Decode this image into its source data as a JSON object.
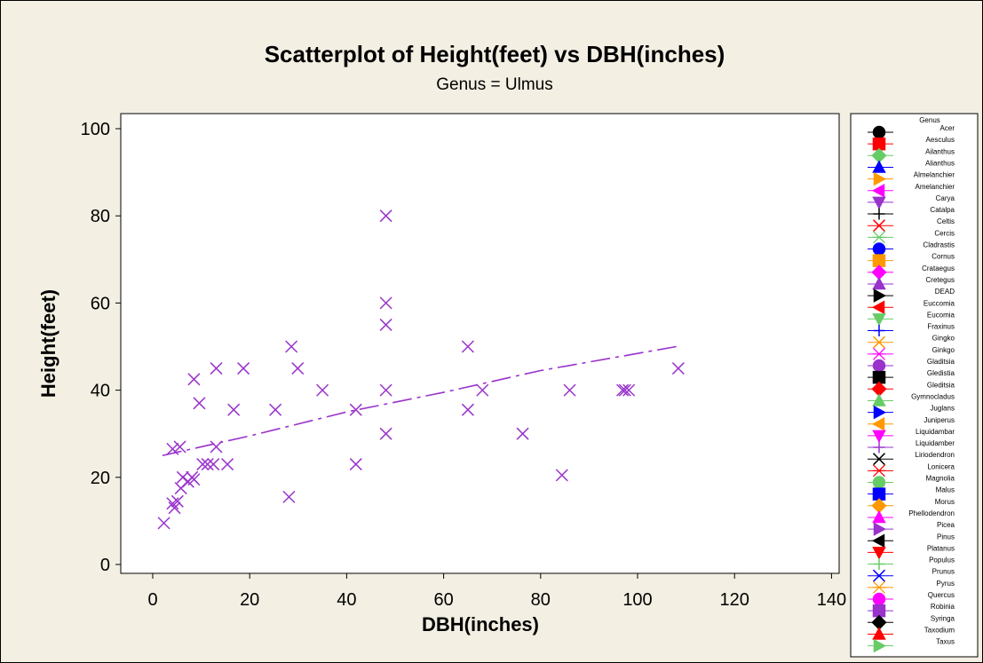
{
  "colors": {
    "figure_bg": "#f3efe3",
    "plot_bg": "#ffffff",
    "scatter": "#9933cc",
    "axis": "#000000"
  },
  "chart_data": {
    "type": "scatter",
    "title": "Scatterplot of Height(feet) vs DBH(inches)",
    "subtitle": "Genus = Ulmus",
    "xlabel": "DBH(inches)",
    "ylabel": "Height(feet)",
    "xlim": [
      -8,
      142
    ],
    "ylim": [
      -4,
      103
    ],
    "xticks": [
      0,
      20,
      40,
      60,
      80,
      100,
      120,
      140
    ],
    "yticks": [
      0,
      20,
      40,
      60,
      80,
      100
    ],
    "grid": false,
    "legend_position": "right",
    "series": [
      {
        "marker": "x-icon",
        "color": "#9933cc",
        "points": [
          [
            2.3,
            9.5
          ],
          [
            4.1,
            14
          ],
          [
            4.5,
            13
          ],
          [
            5.1,
            14.5
          ],
          [
            4.1,
            26.5
          ],
          [
            5.6,
            27
          ],
          [
            5.8,
            17.5
          ],
          [
            6.2,
            20
          ],
          [
            7.3,
            19
          ],
          [
            8.1,
            20
          ],
          [
            8.5,
            42.5
          ],
          [
            8.5,
            19.5
          ],
          [
            9.6,
            37
          ],
          [
            10.3,
            23
          ],
          [
            11.3,
            23
          ],
          [
            12.5,
            23
          ],
          [
            13.1,
            45
          ],
          [
            13.1,
            27
          ],
          [
            15.4,
            23
          ],
          [
            16.7,
            35.5
          ],
          [
            18.7,
            45
          ],
          [
            25.3,
            35.5
          ],
          [
            28.1,
            15.5
          ],
          [
            28.6,
            50
          ],
          [
            29.9,
            45
          ],
          [
            35,
            40
          ],
          [
            41.9,
            35.5
          ],
          [
            41.9,
            23
          ],
          [
            48.1,
            80
          ],
          [
            48.1,
            60
          ],
          [
            48.1,
            55
          ],
          [
            48.1,
            40
          ],
          [
            48.1,
            30
          ],
          [
            65,
            50
          ],
          [
            65,
            35.5
          ],
          [
            68,
            40
          ],
          [
            76.3,
            30
          ],
          [
            84.4,
            20.5
          ],
          [
            86,
            40
          ],
          [
            96.9,
            40
          ],
          [
            97.4,
            40
          ],
          [
            98.2,
            40
          ],
          [
            108.4,
            45
          ]
        ]
      }
    ],
    "trend_line": {
      "style": "dash-dot",
      "x": [
        2,
        20,
        40,
        60,
        80,
        108
      ],
      "y": [
        25,
        29.5,
        35,
        39.5,
        44.5,
        50
      ]
    },
    "legend": {
      "title": "Genus",
      "items": [
        {
          "label": "Acer",
          "color": "#000000",
          "marker": "circle"
        },
        {
          "label": "Aesculus",
          "color": "#ff0000",
          "marker": "square"
        },
        {
          "label": "Ailanthus",
          "color": "#66cc66",
          "marker": "diamond"
        },
        {
          "label": "Alianthus",
          "color": "#0000ff",
          "marker": "triangle-up"
        },
        {
          "label": "Almelanchier",
          "color": "#ff9900",
          "marker": "triangle-right"
        },
        {
          "label": "Amelanchier",
          "color": "#ff00ff",
          "marker": "triangle-left"
        },
        {
          "label": "Carya",
          "color": "#9933cc",
          "marker": "triangle-down"
        },
        {
          "label": "Catalpa",
          "color": "#000000",
          "marker": "plus"
        },
        {
          "label": "Celtis",
          "color": "#ff0000",
          "marker": "x"
        },
        {
          "label": "Cercis",
          "color": "#66cc66",
          "marker": "asterisk"
        },
        {
          "label": "Cladrastis",
          "color": "#0000ff",
          "marker": "circle"
        },
        {
          "label": "Cornus",
          "color": "#ff9900",
          "marker": "square"
        },
        {
          "label": "Crataegus",
          "color": "#ff00ff",
          "marker": "diamond"
        },
        {
          "label": "Cretegus",
          "color": "#9933cc",
          "marker": "triangle-up"
        },
        {
          "label": "DEAD",
          "color": "#000000",
          "marker": "triangle-right"
        },
        {
          "label": "Euccomia",
          "color": "#ff0000",
          "marker": "triangle-left"
        },
        {
          "label": "Eucomia",
          "color": "#66cc66",
          "marker": "triangle-down"
        },
        {
          "label": "Fraxinus",
          "color": "#0000ff",
          "marker": "plus"
        },
        {
          "label": "Gingko",
          "color": "#ff9900",
          "marker": "x"
        },
        {
          "label": "Ginkgo",
          "color": "#ff00ff",
          "marker": "asterisk"
        },
        {
          "label": "Gladitsia",
          "color": "#9933cc",
          "marker": "circle"
        },
        {
          "label": "Gledistia",
          "color": "#000000",
          "marker": "square"
        },
        {
          "label": "Gleditsia",
          "color": "#ff0000",
          "marker": "diamond"
        },
        {
          "label": "Gymnocladus",
          "color": "#66cc66",
          "marker": "triangle-up"
        },
        {
          "label": "Juglans",
          "color": "#0000ff",
          "marker": "triangle-right"
        },
        {
          "label": "Juniperus",
          "color": "#ff9900",
          "marker": "triangle-left"
        },
        {
          "label": "Liquidambar",
          "color": "#ff00ff",
          "marker": "triangle-down"
        },
        {
          "label": "Liquidamber",
          "color": "#9933cc",
          "marker": "plus"
        },
        {
          "label": "Liriodendron",
          "color": "#000000",
          "marker": "x"
        },
        {
          "label": "Lonicera",
          "color": "#ff0000",
          "marker": "asterisk"
        },
        {
          "label": "Magnolia",
          "color": "#66cc66",
          "marker": "circle"
        },
        {
          "label": "Malus",
          "color": "#0000ff",
          "marker": "square"
        },
        {
          "label": "Morus",
          "color": "#ff9900",
          "marker": "diamond"
        },
        {
          "label": "Phellodendron",
          "color": "#ff00ff",
          "marker": "triangle-up"
        },
        {
          "label": "Picea",
          "color": "#9933cc",
          "marker": "triangle-right"
        },
        {
          "label": "Pinus",
          "color": "#000000",
          "marker": "triangle-left"
        },
        {
          "label": "Platanus",
          "color": "#ff0000",
          "marker": "triangle-down"
        },
        {
          "label": "Populus",
          "color": "#66cc66",
          "marker": "plus"
        },
        {
          "label": "Prunus",
          "color": "#0000ff",
          "marker": "x"
        },
        {
          "label": "Pyrus",
          "color": "#ff9900",
          "marker": "asterisk"
        },
        {
          "label": "Quercus",
          "color": "#ff00ff",
          "marker": "circle"
        },
        {
          "label": "Robinia",
          "color": "#9933cc",
          "marker": "square"
        },
        {
          "label": "Syringa",
          "color": "#000000",
          "marker": "diamond"
        },
        {
          "label": "Taxodium",
          "color": "#ff0000",
          "marker": "triangle-up"
        },
        {
          "label": "Taxus",
          "color": "#66cc66",
          "marker": "triangle-right"
        }
      ]
    }
  }
}
